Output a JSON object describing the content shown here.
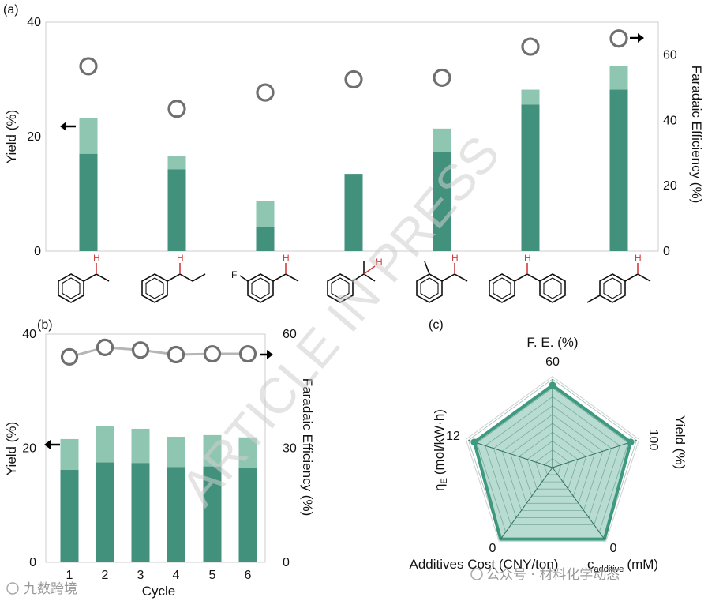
{
  "colors": {
    "dark_bar": "#42917c",
    "light_bar": "#8fc6b1",
    "marker": "#6f6f6f",
    "radar_fill": "#7fc0ad",
    "radar_line": "#3d9a80",
    "watermark": "#cfcfcf"
  },
  "chart_data": [
    {
      "panel": "(a)",
      "type": "bar",
      "title": "",
      "ylabel": "Yield (%)",
      "y2label": "Faradaic Efficiency (%)",
      "ylim": [
        0,
        40
      ],
      "y2lim": [
        0,
        70
      ],
      "yticks": [
        0,
        20,
        40
      ],
      "y2ticks": [
        0,
        20,
        40,
        60
      ],
      "categories": [
        "ethylbenzene",
        "propylbenzene",
        "3-fluoroethylbenzene",
        "cumene",
        "2-methylethylbenzene",
        "diphenylmethane",
        "4-methylethylbenzene"
      ],
      "series": [
        {
          "name": "Yield (dark)",
          "values": [
            17.0,
            14.3,
            4.2,
            13.5,
            17.4,
            25.6,
            28.2
          ]
        },
        {
          "name": "Yield (total, light)",
          "values": [
            23.2,
            16.6,
            8.7,
            13.5,
            21.4,
            28.2,
            32.3
          ]
        },
        {
          "name": "Faradaic Efficiency",
          "axis": "right",
          "values": [
            56.5,
            43.5,
            48.5,
            52.5,
            53,
            62.5,
            65
          ]
        }
      ],
      "arrows": {
        "left": "yield-axis",
        "right": "fe-axis"
      }
    },
    {
      "panel": "(b)",
      "type": "bar",
      "xlabel": "Cycle",
      "ylabel": "Yield (%)",
      "y2label": "Faradaic Efficiency (%)",
      "categories": [
        "1",
        "2",
        "3",
        "4",
        "5",
        "6"
      ],
      "ylim": [
        0,
        40
      ],
      "y2lim": [
        0,
        60
      ],
      "yticks": [
        0,
        20,
        40
      ],
      "y2ticks": [
        0,
        30,
        60
      ],
      "series": [
        {
          "name": "Yield (dark)",
          "values": [
            16.2,
            17.5,
            17.4,
            16.7,
            16.8,
            16.5
          ]
        },
        {
          "name": "Yield (total, light)",
          "values": [
            21.6,
            23.9,
            23.4,
            22.0,
            22.3,
            21.9
          ]
        },
        {
          "name": "Faradaic Efficiency",
          "axis": "right",
          "values": [
            54.0,
            56.5,
            55.8,
            54.6,
            54.8,
            54.8
          ]
        }
      ]
    },
    {
      "panel": "(c)",
      "type": "radar",
      "axes": [
        {
          "label": "F. E. (%)",
          "max_label": "60",
          "value": 0.93
        },
        {
          "label": "Yield (%)",
          "max_label": "100",
          "value": 0.93
        },
        {
          "label_main": "c",
          "label_sub": "additive",
          "label_unit": "(mM)",
          "max_label": "0",
          "value": 1.0
        },
        {
          "label": "Additives Cost (CNY/ton)",
          "max_label": "0",
          "value": 1.0
        },
        {
          "label_main": "η",
          "label_sub": "E",
          "label_unit": "(mol/kW·h)",
          "max_label": "12",
          "value": 0.93
        }
      ],
      "rings": 10
    }
  ],
  "watermark": "ARTICLE IN PRESS",
  "footer": {
    "left": "九数跨境",
    "right": "公众号 · 材料化学动态"
  },
  "structure_labels": {
    "H": "H",
    "F": "F"
  }
}
